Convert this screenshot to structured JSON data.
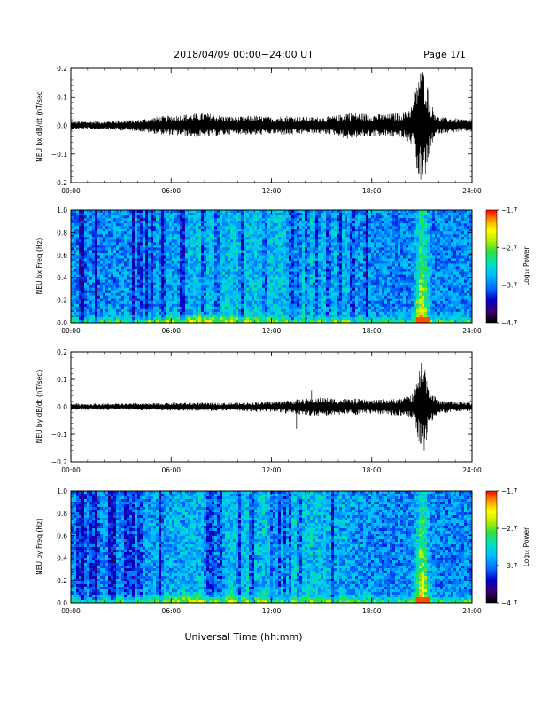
{
  "header": {
    "title": "2018/04/09  00:00−24:00 UT",
    "page": "Page 1/1"
  },
  "footer": {
    "xlabel": "Universal Time (hh:mm)"
  },
  "colors": {
    "trace": "#000000",
    "colormap": [
      "#000000",
      "#3a0070",
      "#0000c8",
      "#0066ff",
      "#00bbff",
      "#00e0c0",
      "#30e040",
      "#c8f000",
      "#ffff00",
      "#ff9900",
      "#ff0000"
    ]
  },
  "chart_data": [
    {
      "type": "line",
      "ylabel": "NEU bx dB/dt (nT/sec)",
      "x_ticks": [
        "00:00",
        "06:00",
        "12:00",
        "18:00",
        "24:00"
      ],
      "y_ticks": [
        "0.2",
        "0.1",
        "0.0",
        "−0.1",
        "−0.2"
      ],
      "xlim": [
        0,
        24
      ],
      "ylim": [
        -0.2,
        0.2
      ],
      "envelope": {
        "x_hours": [
          0,
          1,
          2,
          3,
          4,
          5,
          6,
          7,
          8,
          8.5,
          9,
          10,
          11,
          12,
          13,
          14,
          15,
          16,
          16.5,
          17,
          18,
          19,
          20,
          20.5,
          20.8,
          21,
          21.2,
          21.5,
          22,
          23,
          24
        ],
        "amplitude": [
          0.015,
          0.015,
          0.015,
          0.018,
          0.02,
          0.03,
          0.035,
          0.04,
          0.045,
          0.04,
          0.035,
          0.03,
          0.035,
          0.03,
          0.035,
          0.03,
          0.03,
          0.035,
          0.05,
          0.045,
          0.04,
          0.04,
          0.05,
          0.08,
          0.2,
          0.2,
          0.2,
          0.08,
          0.03,
          0.025,
          0.02
        ]
      }
    },
    {
      "type": "heatmap",
      "ylabel": "NEU bx Freq (Hz)",
      "x_ticks": [
        "00:00",
        "06:00",
        "12:00",
        "18:00",
        "24:00"
      ],
      "y_ticks": [
        "1.0",
        "0.8",
        "0.6",
        "0.4",
        "0.2",
        "0.0"
      ],
      "xlim": [
        0,
        24
      ],
      "ylim": [
        0,
        1
      ],
      "colorbar": {
        "label": "Log₁₀ Power",
        "ticks": [
          "−1.7",
          "−2.7",
          "−3.7",
          "−4.7"
        ],
        "range": [
          -4.7,
          -1.7
        ]
      }
    },
    {
      "type": "line",
      "ylabel": "NEU by dB/dt (nT/sec)",
      "x_ticks": [
        "00:00",
        "06:00",
        "12:00",
        "18:00",
        "24:00"
      ],
      "y_ticks": [
        "0.2",
        "0.1",
        "0.0",
        "−0.1",
        "−0.2"
      ],
      "xlim": [
        0,
        24
      ],
      "ylim": [
        -0.2,
        0.2
      ],
      "envelope": {
        "x_hours": [
          0,
          1,
          2,
          3,
          4,
          5,
          6,
          7,
          8,
          9,
          10,
          11,
          12,
          13,
          14,
          15,
          16,
          17,
          18,
          19,
          20,
          20.5,
          20.8,
          21,
          21.2,
          21.5,
          22,
          23,
          24
        ],
        "amplitude": [
          0.012,
          0.012,
          0.012,
          0.012,
          0.013,
          0.013,
          0.015,
          0.015,
          0.015,
          0.015,
          0.015,
          0.018,
          0.02,
          0.025,
          0.03,
          0.035,
          0.03,
          0.03,
          0.025,
          0.03,
          0.035,
          0.05,
          0.12,
          0.19,
          0.15,
          0.06,
          0.025,
          0.02,
          0.015
        ]
      }
    },
    {
      "type": "heatmap",
      "ylabel": "NEU by Freq (Hz)",
      "x_ticks": [
        "00:00",
        "06:00",
        "12:00",
        "18:00",
        "24:00"
      ],
      "y_ticks": [
        "1.0",
        "0.8",
        "0.6",
        "0.4",
        "0.2",
        "0.0"
      ],
      "xlim": [
        0,
        24
      ],
      "ylim": [
        0,
        1
      ],
      "colorbar": {
        "label": "Log₁₀ Power",
        "ticks": [
          "−1.7",
          "−2.7",
          "−3.7",
          "−4.7"
        ],
        "range": [
          -4.7,
          -1.7
        ]
      }
    }
  ]
}
